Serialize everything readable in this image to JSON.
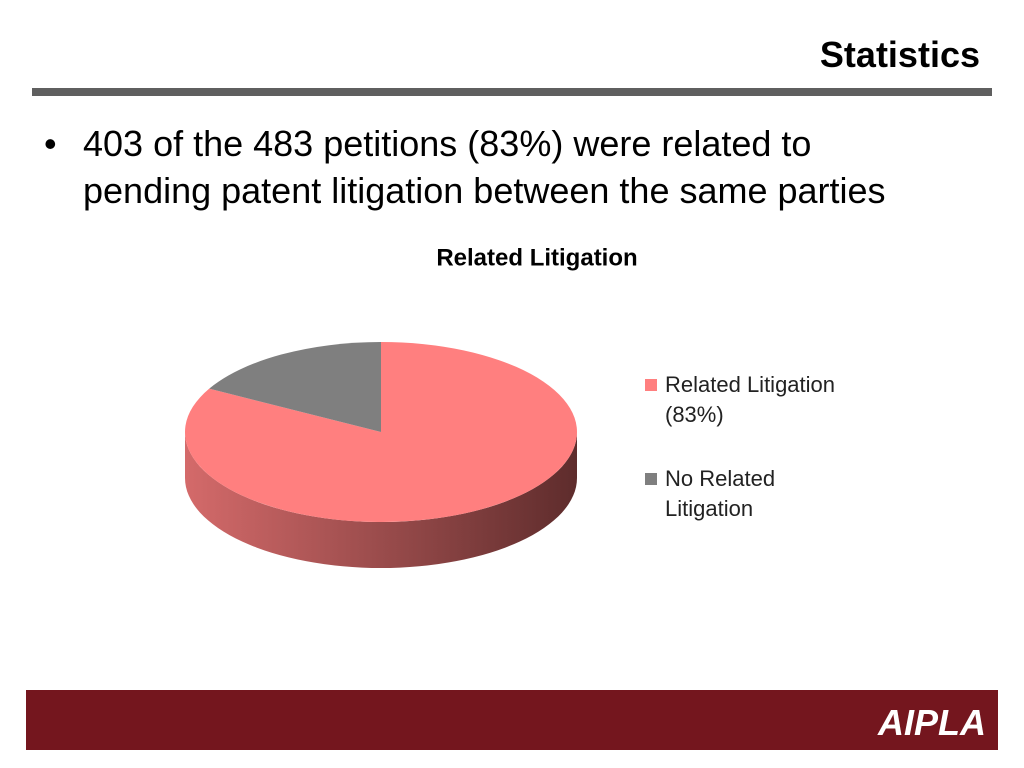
{
  "header": {
    "title": "Statistics"
  },
  "bullet": {
    "lines": [
      "403 of the 483 petitions (83%) were related to",
      "pending patent litigation between the same parties"
    ]
  },
  "chart_data": {
    "type": "pie",
    "title": "Related Litigation",
    "categories": [
      "Related Litigation (83%)",
      "No Related Litigation"
    ],
    "values": [
      83,
      17
    ],
    "colors": [
      "#ff7f7f",
      "#7f7f7f"
    ],
    "legend": "right"
  },
  "footer": {
    "logo": "AIPLA"
  }
}
